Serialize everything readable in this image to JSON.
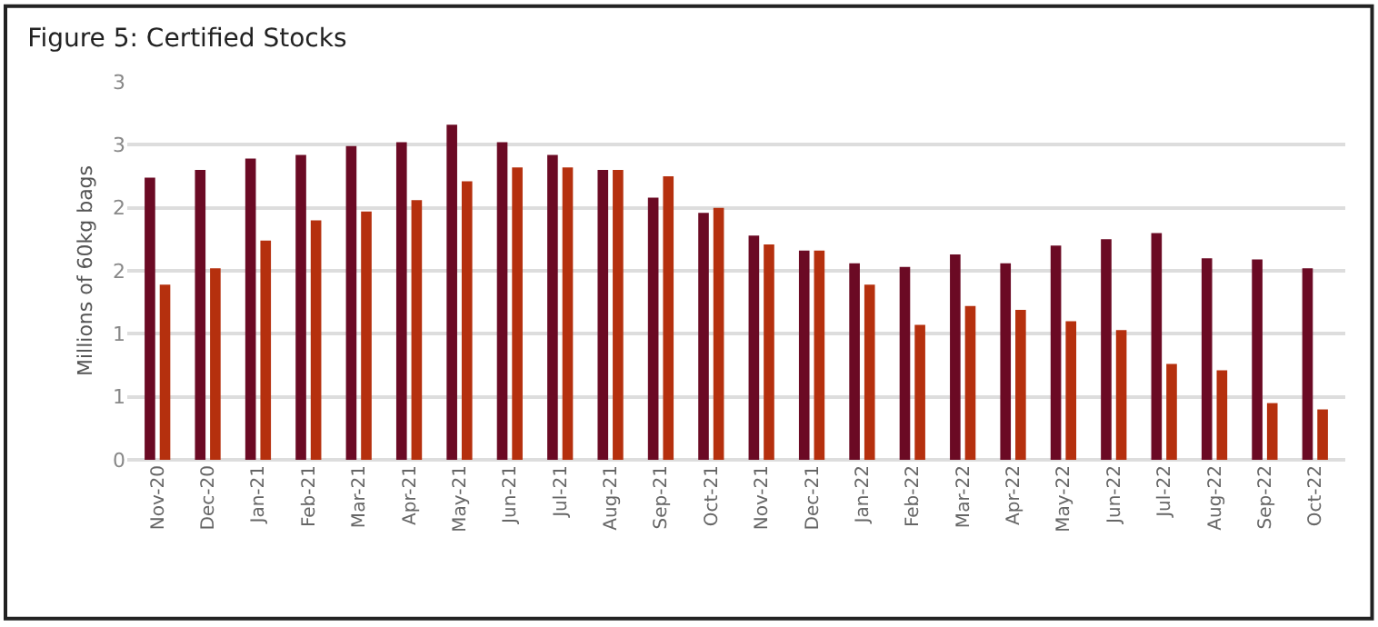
{
  "chart_data": {
    "type": "bar",
    "title": "Figure 5: Certified Stocks",
    "ylabel": "Millions of 60kg bags",
    "categories": [
      "Nov-20",
      "Dec-20",
      "Jan-21",
      "Feb-21",
      "Mar-21",
      "Apr-21",
      "May-21",
      "Jun-21",
      "Jul-21",
      "Aug-21",
      "Sep-21",
      "Oct-21",
      "Nov-21",
      "Dec-21",
      "Jan-22",
      "Feb-22",
      "Mar-22",
      "Apr-22",
      "May-22",
      "Jun-22",
      "Jul-22",
      "Aug-22",
      "Sep-22",
      "Oct-22"
    ],
    "series": [
      {
        "color": "#6b0a24",
        "values": [
          2.24,
          2.3,
          2.39,
          2.42,
          2.49,
          2.52,
          2.66,
          2.52,
          2.42,
          2.3,
          2.08,
          1.96,
          1.78,
          1.66,
          1.56,
          1.53,
          1.63,
          1.56,
          1.7,
          1.75,
          1.8,
          1.6,
          1.59,
          1.52
        ]
      },
      {
        "color": "#b5300e",
        "values": [
          1.39,
          1.52,
          1.74,
          1.9,
          1.97,
          2.06,
          2.21,
          2.32,
          2.32,
          2.3,
          2.25,
          2.0,
          1.71,
          1.66,
          1.39,
          1.07,
          1.22,
          1.19,
          1.1,
          1.03,
          0.76,
          0.71,
          0.45,
          0.4
        ]
      }
    ],
    "ylim": [
      0,
      3
    ],
    "yticks": [
      0,
      {
        "value": 0.5,
        "label": "1"
      },
      1,
      {
        "value": 1.5,
        "label": "2"
      },
      2,
      {
        "value": 2.5,
        "label": "3"
      },
      3
    ],
    "grid": "y"
  }
}
